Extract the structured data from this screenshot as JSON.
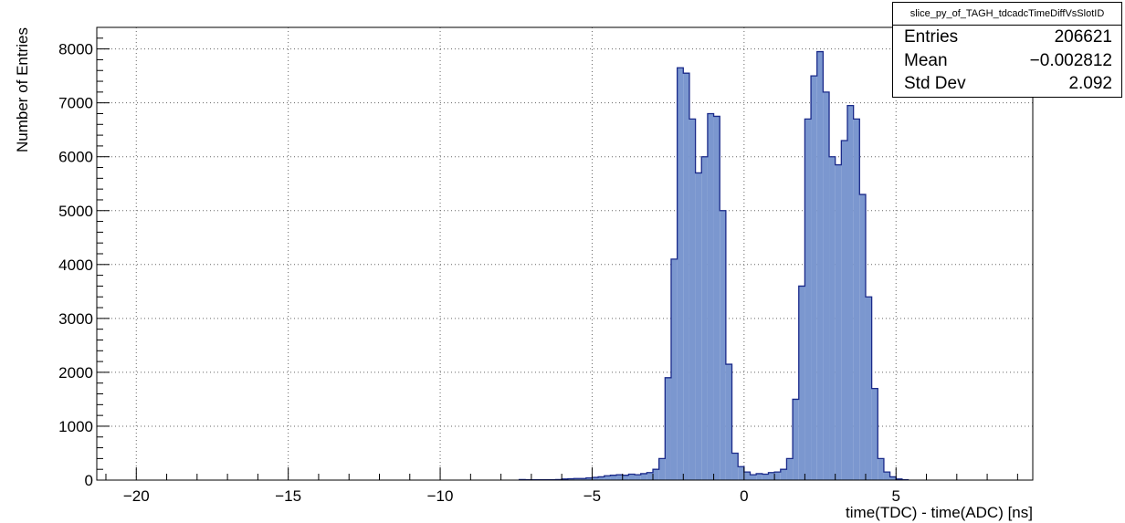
{
  "chart_data": {
    "type": "histogram",
    "title": "",
    "xlabel": "time(TDC) - time(ADC) [ns]",
    "ylabel": "Number of Entries",
    "xlim": [
      -21.3,
      9.5
    ],
    "ylim": [
      0,
      8400
    ],
    "xticks": [
      -20,
      -15,
      -10,
      -5,
      0,
      5
    ],
    "yticks": [
      0,
      1000,
      2000,
      3000,
      4000,
      5000,
      6000,
      7000,
      8000
    ],
    "grid": true,
    "legend": "none",
    "fill_color": "#7b97cf",
    "line_color": "#1a2a8a",
    "bin_width": 0.2,
    "bins": [
      [
        -7.4,
        10
      ],
      [
        -7.2,
        5
      ],
      [
        -7.0,
        5
      ],
      [
        -6.8,
        5
      ],
      [
        -6.6,
        5
      ],
      [
        -6.4,
        5
      ],
      [
        -6.2,
        10
      ],
      [
        -6.0,
        20
      ],
      [
        -5.8,
        25
      ],
      [
        -5.6,
        30
      ],
      [
        -5.4,
        30
      ],
      [
        -5.2,
        40
      ],
      [
        -5.0,
        50
      ],
      [
        -4.8,
        60
      ],
      [
        -4.6,
        80
      ],
      [
        -4.4,
        90
      ],
      [
        -4.2,
        100
      ],
      [
        -4.0,
        90
      ],
      [
        -3.8,
        110
      ],
      [
        -3.6,
        100
      ],
      [
        -3.4,
        120
      ],
      [
        -3.2,
        140
      ],
      [
        -3.0,
        200
      ],
      [
        -2.8,
        400
      ],
      [
        -2.6,
        1900
      ],
      [
        -2.4,
        4100
      ],
      [
        -2.2,
        7650
      ],
      [
        -2.0,
        7550
      ],
      [
        -1.8,
        6700
      ],
      [
        -1.6,
        5700
      ],
      [
        -1.4,
        6000
      ],
      [
        -1.2,
        6800
      ],
      [
        -1.0,
        6750
      ],
      [
        -0.8,
        5000
      ],
      [
        -0.6,
        2150
      ],
      [
        -0.4,
        500
      ],
      [
        -0.2,
        250
      ],
      [
        0.0,
        150
      ],
      [
        0.2,
        100
      ],
      [
        0.4,
        120
      ],
      [
        0.6,
        110
      ],
      [
        0.8,
        140
      ],
      [
        1.0,
        150
      ],
      [
        1.2,
        200
      ],
      [
        1.4,
        400
      ],
      [
        1.6,
        1500
      ],
      [
        1.8,
        3600
      ],
      [
        2.0,
        6700
      ],
      [
        2.2,
        7500
      ],
      [
        2.4,
        7950
      ],
      [
        2.6,
        7200
      ],
      [
        2.8,
        6000
      ],
      [
        3.0,
        5850
      ],
      [
        3.2,
        6300
      ],
      [
        3.4,
        6950
      ],
      [
        3.6,
        6700
      ],
      [
        3.8,
        5300
      ],
      [
        4.0,
        3400
      ],
      [
        4.2,
        1700
      ],
      [
        4.4,
        400
      ],
      [
        4.6,
        150
      ],
      [
        4.8,
        60
      ],
      [
        5.0,
        20
      ],
      [
        5.2,
        5
      ]
    ]
  },
  "stats": {
    "title": "slice_py_of_TAGH_tdcadcTimeDiffVsSlotID",
    "rows": [
      {
        "label": "Entries",
        "value": "206621"
      },
      {
        "label": "Mean",
        "value": "−0.002812"
      },
      {
        "label": "Std Dev",
        "value": "2.092"
      }
    ]
  }
}
